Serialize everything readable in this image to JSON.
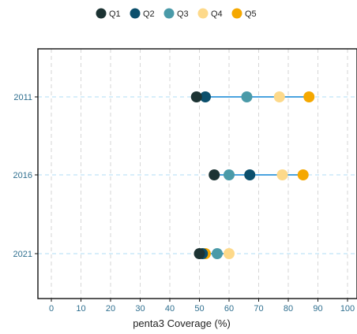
{
  "chart_data": {
    "type": "scatter",
    "subtype": "dumbbell",
    "title": "",
    "xlabel": "penta3 Coverage (%)",
    "ylabel": "",
    "xlim": [
      0,
      100
    ],
    "x_ticks": [
      0,
      10,
      20,
      30,
      40,
      50,
      60,
      70,
      80,
      90,
      100
    ],
    "x_tick_labels": [
      "0",
      "10",
      "20",
      "30",
      "40",
      "50",
      "60",
      "70",
      "80",
      "90",
      "100"
    ],
    "categories": [
      "2011",
      "2016",
      "2021"
    ],
    "grid": true,
    "legend_position": "top",
    "range_line_color": "#4aa3df",
    "series": [
      {
        "name": "Q1",
        "color": "#1c3333",
        "values": [
          49,
          55,
          50
        ]
      },
      {
        "name": "Q2",
        "color": "#0b4f6c",
        "values": [
          52,
          67,
          51
        ]
      },
      {
        "name": "Q3",
        "color": "#4a9aa8",
        "values": [
          66,
          60,
          56
        ]
      },
      {
        "name": "Q4",
        "color": "#fdd98a",
        "values": [
          77,
          78,
          60
        ]
      },
      {
        "name": "Q5",
        "color": "#f5a800",
        "values": [
          87,
          85,
          52
        ]
      }
    ]
  }
}
